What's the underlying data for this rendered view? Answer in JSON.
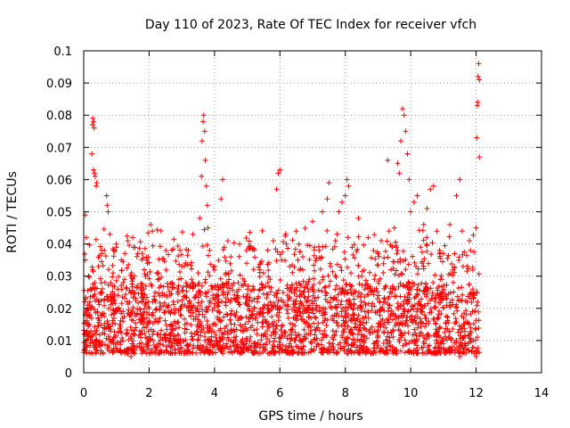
{
  "chart_data": {
    "type": "scatter",
    "title": "Day 110 of 2023, Rate Of TEC Index for receiver vfch",
    "xlabel": "GPS time / hours",
    "ylabel": "ROTI / TECUs",
    "xlim": [
      0,
      14
    ],
    "ylim": [
      0,
      0.1
    ],
    "xticks": [
      0,
      2,
      4,
      6,
      8,
      10,
      12,
      14
    ],
    "xtick_labels": [
      "0",
      "2",
      "4",
      "6",
      "8",
      "10",
      "12",
      "14"
    ],
    "yticks": [
      0,
      0.01,
      0.02,
      0.03,
      0.04,
      0.05,
      0.06,
      0.07,
      0.08,
      0.09,
      0.1
    ],
    "ytick_labels": [
      "0",
      "0.01",
      "0.02",
      "0.03",
      "0.04",
      "0.05",
      "0.06",
      "0.07",
      "0.08",
      "0.09",
      "0.1"
    ],
    "grid": true,
    "marker": "+",
    "marker_color": "#ff0000",
    "x_data_range": [
      0,
      12.1
    ],
    "series": [
      {
        "name": "ROTI",
        "points": [
          [
            0.02,
            0.012
          ],
          [
            0.05,
            0.035
          ],
          [
            0.05,
            0.049
          ],
          [
            0.08,
            0.042
          ],
          [
            0.1,
            0.008
          ],
          [
            0.12,
            0.021
          ],
          [
            0.15,
            0.03
          ],
          [
            0.18,
            0.015
          ],
          [
            0.2,
            0.026
          ],
          [
            0.22,
            0.011
          ],
          [
            0.27,
            0.077
          ],
          [
            0.28,
            0.079
          ],
          [
            0.3,
            0.078
          ],
          [
            0.32,
            0.076
          ],
          [
            0.25,
            0.068
          ],
          [
            0.3,
            0.063
          ],
          [
            0.35,
            0.061
          ],
          [
            0.38,
            0.058
          ],
          [
            0.33,
            0.062
          ],
          [
            0.4,
            0.059
          ],
          [
            0.42,
            0.019
          ],
          [
            0.45,
            0.033
          ],
          [
            0.5,
            0.009
          ],
          [
            0.55,
            0.037
          ],
          [
            0.6,
            0.014
          ],
          [
            0.65,
            0.028
          ],
          [
            0.7,
            0.055
          ],
          [
            0.72,
            0.052
          ],
          [
            0.75,
            0.05
          ],
          [
            0.8,
            0.043
          ],
          [
            0.85,
            0.018
          ],
          [
            0.9,
            0.031
          ],
          [
            0.95,
            0.011
          ],
          [
            1.0,
            0.039
          ],
          [
            1.05,
            0.024
          ],
          [
            1.1,
            0.007
          ],
          [
            1.15,
            0.035
          ],
          [
            1.2,
            0.016
          ],
          [
            1.25,
            0.029
          ],
          [
            1.3,
            0.012
          ],
          [
            1.35,
            0.041
          ],
          [
            1.4,
            0.022
          ],
          [
            1.45,
            0.005
          ],
          [
            1.5,
            0.042
          ],
          [
            1.55,
            0.03
          ],
          [
            1.6,
            0.014
          ],
          [
            1.65,
            0.037
          ],
          [
            1.7,
            0.009
          ],
          [
            1.75,
            0.026
          ],
          [
            1.8,
            0.018
          ],
          [
            1.85,
            0.032
          ],
          [
            1.9,
            0.011
          ],
          [
            1.95,
            0.034
          ],
          [
            2.0,
            0.02
          ],
          [
            2.05,
            0.046
          ],
          [
            2.1,
            0.044
          ],
          [
            2.2,
            0.008
          ],
          [
            2.3,
            0.016
          ],
          [
            2.4,
            0.024
          ],
          [
            2.5,
            0.012
          ],
          [
            2.6,
            0.021
          ],
          [
            2.7,
            0.028
          ],
          [
            2.8,
            0.01
          ],
          [
            2.9,
            0.027
          ],
          [
            3.0,
            0.033
          ],
          [
            3.1,
            0.015
          ],
          [
            3.2,
            0.038
          ],
          [
            3.3,
            0.029
          ],
          [
            3.4,
            0.012
          ],
          [
            3.5,
            0.031
          ],
          [
            3.55,
            0.048
          ],
          [
            3.6,
            0.061
          ],
          [
            3.62,
            0.072
          ],
          [
            3.65,
            0.078
          ],
          [
            3.67,
            0.08
          ],
          [
            3.7,
            0.075
          ],
          [
            3.72,
            0.066
          ],
          [
            3.75,
            0.058
          ],
          [
            3.78,
            0.052
          ],
          [
            3.8,
            0.045
          ],
          [
            3.85,
            0.038
          ],
          [
            3.9,
            0.027
          ],
          [
            3.95,
            0.015
          ],
          [
            4.0,
            0.033
          ],
          [
            4.1,
            0.022
          ],
          [
            4.2,
            0.054
          ],
          [
            4.25,
            0.06
          ],
          [
            4.3,
            0.039
          ],
          [
            4.35,
            0.031
          ],
          [
            4.4,
            0.018
          ],
          [
            4.5,
            0.036
          ],
          [
            4.6,
            0.011
          ],
          [
            4.7,
            0.024
          ],
          [
            4.8,
            0.017
          ],
          [
            4.9,
            0.009
          ],
          [
            5.0,
            0.021
          ],
          [
            5.1,
            0.014
          ],
          [
            5.2,
            0.026
          ],
          [
            5.3,
            0.012
          ],
          [
            5.4,
            0.019
          ],
          [
            5.5,
            0.031
          ],
          [
            5.6,
            0.016
          ],
          [
            5.7,
            0.029
          ],
          [
            5.8,
            0.041
          ],
          [
            5.9,
            0.057
          ],
          [
            5.95,
            0.062
          ],
          [
            6.0,
            0.063
          ],
          [
            6.05,
            0.035
          ],
          [
            6.1,
            0.022
          ],
          [
            6.2,
            0.04
          ],
          [
            6.3,
            0.033
          ],
          [
            6.4,
            0.015
          ],
          [
            6.5,
            0.044
          ],
          [
            6.6,
            0.02
          ],
          [
            6.7,
            0.036
          ],
          [
            6.8,
            0.012
          ],
          [
            6.9,
            0.029
          ],
          [
            7.0,
            0.047
          ],
          [
            7.1,
            0.017
          ],
          [
            7.2,
            0.038
          ],
          [
            7.3,
            0.05
          ],
          [
            7.4,
            0.024
          ],
          [
            7.45,
            0.054
          ],
          [
            7.5,
            0.059
          ],
          [
            7.55,
            0.033
          ],
          [
            7.6,
            0.011
          ],
          [
            7.7,
            0.041
          ],
          [
            7.8,
            0.05
          ],
          [
            7.9,
            0.053
          ],
          [
            8.0,
            0.055
          ],
          [
            8.05,
            0.06
          ],
          [
            8.1,
            0.058
          ],
          [
            8.2,
            0.027
          ],
          [
            8.3,
            0.014
          ],
          [
            8.4,
            0.048
          ],
          [
            8.5,
            0.03
          ],
          [
            8.6,
            0.019
          ],
          [
            8.7,
            0.042
          ],
          [
            8.8,
            0.025
          ],
          [
            8.9,
            0.013
          ],
          [
            9.0,
            0.037
          ],
          [
            9.1,
            0.041
          ],
          [
            9.2,
            0.023
          ],
          [
            9.3,
            0.066
          ],
          [
            9.4,
            0.032
          ],
          [
            9.5,
            0.045
          ],
          [
            9.6,
            0.065
          ],
          [
            9.65,
            0.062
          ],
          [
            9.7,
            0.072
          ],
          [
            9.75,
            0.082
          ],
          [
            9.8,
            0.08
          ],
          [
            9.85,
            0.075
          ],
          [
            9.9,
            0.068
          ],
          [
            9.95,
            0.06
          ],
          [
            10.0,
            0.05
          ],
          [
            10.1,
            0.053
          ],
          [
            10.2,
            0.055
          ],
          [
            10.3,
            0.039
          ],
          [
            10.4,
            0.046
          ],
          [
            10.5,
            0.051
          ],
          [
            10.6,
            0.057
          ],
          [
            10.7,
            0.058
          ],
          [
            10.8,
            0.044
          ],
          [
            10.9,
            0.029
          ],
          [
            11.0,
            0.037
          ],
          [
            11.1,
            0.021
          ],
          [
            11.2,
            0.046
          ],
          [
            11.3,
            0.028
          ],
          [
            11.4,
            0.055
          ],
          [
            11.5,
            0.06
          ],
          [
            11.6,
            0.033
          ],
          [
            11.7,
            0.018
          ],
          [
            11.8,
            0.041
          ],
          [
            11.9,
            0.026
          ],
          [
            12.0,
            0.045
          ],
          [
            12.02,
            0.073
          ],
          [
            12.04,
            0.083
          ],
          [
            12.05,
            0.084
          ],
          [
            12.06,
            0.092
          ],
          [
            12.08,
            0.096
          ],
          [
            12.1,
            0.091
          ],
          [
            12.1,
            0.067
          ],
          [
            12.0,
            0.005
          ],
          [
            11.5,
            0.005
          ],
          [
            10.5,
            0.006
          ]
        ]
      }
    ]
  }
}
